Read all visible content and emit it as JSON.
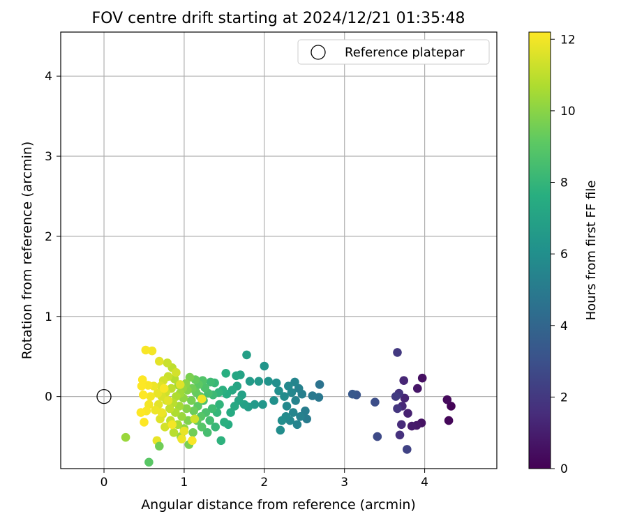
{
  "chart_data": {
    "type": "scatter",
    "title": "FOV centre drift starting at 2024/12/21 01:35:48",
    "xlabel": "Angular distance from reference (arcmin)",
    "ylabel": "Rotation from reference (arcmin)",
    "xlim": [
      -0.54,
      4.9
    ],
    "ylim": [
      -0.9,
      4.55
    ],
    "xticks": [
      "0",
      "1",
      "2",
      "3",
      "4"
    ],
    "yticks": [
      "0",
      "1",
      "2",
      "3",
      "4"
    ],
    "grid": true,
    "legend": {
      "placement": "top-right",
      "entries": [
        "Reference platepar"
      ]
    },
    "reference_point": {
      "x": 0,
      "y": 0
    },
    "colorbar": {
      "label": "Hours from first FF file",
      "range": [
        0,
        12.2
      ],
      "ticks": [
        "0",
        "2",
        "4",
        "6",
        "8",
        "10",
        "12"
      ],
      "colormap": "viridis"
    },
    "points": [
      [
        4.33,
        -0.12,
        0.1
      ],
      [
        4.3,
        -0.3,
        0.2
      ],
      [
        4.28,
        -0.04,
        0.3
      ],
      [
        3.97,
        0.23,
        0.5
      ],
      [
        3.96,
        -0.33,
        0.6
      ],
      [
        3.91,
        0.1,
        0.7
      ],
      [
        3.9,
        -0.36,
        0.8
      ],
      [
        3.84,
        -0.37,
        0.9
      ],
      [
        3.79,
        -0.21,
        1.1
      ],
      [
        3.75,
        -0.02,
        1.2
      ],
      [
        3.74,
        0.2,
        1.3
      ],
      [
        3.72,
        -0.12,
        1.4
      ],
      [
        3.71,
        -0.35,
        1.5
      ],
      [
        3.69,
        -0.48,
        1.7
      ],
      [
        3.68,
        0.04,
        1.8
      ],
      [
        3.66,
        -0.15,
        1.9
      ],
      [
        3.66,
        0.55,
        2.0
      ],
      [
        3.64,
        0.0,
        2.1
      ],
      [
        3.78,
        -0.66,
        2.4
      ],
      [
        3.41,
        -0.5,
        2.7
      ],
      [
        3.38,
        -0.07,
        2.9
      ],
      [
        3.15,
        0.02,
        3.2
      ],
      [
        3.1,
        0.03,
        3.4
      ],
      [
        2.69,
        0.15,
        4.6
      ],
      [
        2.68,
        -0.01,
        4.8
      ],
      [
        2.6,
        0.01,
        4.9
      ],
      [
        2.53,
        -0.28,
        5.0
      ],
      [
        2.51,
        -0.18,
        5.1
      ],
      [
        2.47,
        0.03,
        5.2
      ],
      [
        2.45,
        -0.25,
        5.3
      ],
      [
        2.43,
        0.1,
        5.3
      ],
      [
        2.41,
        -0.35,
        5.4
      ],
      [
        2.39,
        -0.05,
        5.4
      ],
      [
        2.38,
        0.18,
        5.5
      ],
      [
        2.36,
        -0.2,
        5.5
      ],
      [
        2.34,
        0.05,
        5.6
      ],
      [
        2.32,
        -0.3,
        5.6
      ],
      [
        2.3,
        0.13,
        5.7
      ],
      [
        2.28,
        -0.12,
        5.7
      ],
      [
        2.27,
        -0.25,
        5.8
      ],
      [
        2.25,
        0.0,
        5.8
      ],
      [
        2.22,
        -0.3,
        5.9
      ],
      [
        2.2,
        -0.42,
        5.9
      ],
      [
        2.18,
        0.07,
        6.0
      ],
      [
        2.15,
        0.17,
        6.0
      ],
      [
        2.12,
        -0.05,
        6.1
      ],
      [
        2.05,
        0.19,
        6.2
      ],
      [
        2.0,
        0.38,
        6.3
      ],
      [
        1.98,
        -0.1,
        6.4
      ],
      [
        1.93,
        0.19,
        6.5
      ],
      [
        1.88,
        -0.1,
        6.5
      ],
      [
        1.82,
        0.19,
        6.6
      ],
      [
        1.8,
        -0.13,
        6.7
      ],
      [
        1.78,
        0.52,
        6.8
      ],
      [
        1.75,
        -0.1,
        6.9
      ],
      [
        1.72,
        0.02,
        6.9
      ],
      [
        1.7,
        0.27,
        7.0
      ],
      [
        1.68,
        -0.05,
        7.1
      ],
      [
        1.66,
        0.13,
        7.1
      ],
      [
        1.65,
        0.26,
        7.2
      ],
      [
        1.63,
        -0.12,
        7.3
      ],
      [
        1.6,
        0.08,
        7.3
      ],
      [
        1.58,
        -0.2,
        7.4
      ],
      [
        1.55,
        -0.35,
        7.5
      ],
      [
        1.53,
        0.03,
        7.5
      ],
      [
        1.52,
        0.29,
        7.6
      ],
      [
        1.5,
        -0.32,
        7.7
      ],
      [
        1.48,
        0.08,
        7.7
      ],
      [
        1.46,
        -0.55,
        7.8
      ],
      [
        1.44,
        -0.1,
        7.9
      ],
      [
        1.43,
        0.05,
        7.9
      ],
      [
        1.41,
        -0.2,
        8.0
      ],
      [
        1.39,
        -0.38,
        8.1
      ],
      [
        1.38,
        0.17,
        8.1
      ],
      [
        1.36,
        0.02,
        8.2
      ],
      [
        1.35,
        -0.15,
        8.3
      ],
      [
        1.33,
        0.18,
        8.3
      ],
      [
        1.32,
        -0.3,
        8.4
      ],
      [
        1.3,
        0.04,
        8.5
      ],
      [
        1.29,
        -0.45,
        8.5
      ],
      [
        1.27,
        -0.2,
        8.6
      ],
      [
        1.26,
        0.11,
        8.7
      ],
      [
        1.24,
        -0.05,
        8.7
      ],
      [
        1.23,
        0.2,
        8.8
      ],
      [
        1.22,
        -0.38,
        8.9
      ],
      [
        1.21,
        -0.25,
        8.9
      ],
      [
        1.2,
        0.0,
        9.0
      ],
      [
        1.18,
        0.15,
        9.1
      ],
      [
        1.17,
        -0.12,
        9.1
      ],
      [
        1.16,
        -0.3,
        9.2
      ],
      [
        1.15,
        0.05,
        9.3
      ],
      [
        1.14,
        0.21,
        9.3
      ],
      [
        1.12,
        -0.18,
        9.4
      ],
      [
        1.11,
        -0.45,
        9.5
      ],
      [
        1.1,
        0.1,
        9.5
      ],
      [
        1.09,
        -0.05,
        9.6
      ],
      [
        1.07,
        0.24,
        9.7
      ],
      [
        1.06,
        -0.6,
        9.7
      ],
      [
        1.05,
        -0.3,
        9.8
      ],
      [
        1.04,
        0.08,
        9.9
      ],
      [
        1.03,
        -0.15,
        9.9
      ],
      [
        1.02,
        0.16,
        10.0
      ],
      [
        1.0,
        -0.4,
        10.1
      ],
      [
        0.99,
        -0.02,
        10.1
      ],
      [
        0.98,
        0.1,
        10.2
      ],
      [
        0.97,
        -0.25,
        10.3
      ],
      [
        0.96,
        -0.5,
        10.3
      ],
      [
        0.95,
        0.04,
        10.4
      ],
      [
        0.94,
        -0.12,
        10.5
      ],
      [
        0.93,
        0.14,
        10.5
      ],
      [
        0.92,
        -0.35,
        10.6
      ],
      [
        0.9,
        0.0,
        10.7
      ],
      [
        0.89,
        -0.2,
        10.7
      ],
      [
        0.88,
        0.22,
        10.8
      ],
      [
        0.87,
        -0.45,
        10.9
      ],
      [
        0.86,
        -0.08,
        10.9
      ],
      [
        0.85,
        0.36,
        11.0
      ],
      [
        0.84,
        0.1,
        11.0
      ],
      [
        0.83,
        -0.3,
        11.1
      ],
      [
        0.82,
        -0.15,
        11.1
      ],
      [
        0.8,
        0.25,
        11.2
      ],
      [
        0.79,
        0.42,
        11.2
      ],
      [
        0.78,
        -0.05,
        11.3
      ],
      [
        0.77,
        0.05,
        11.3
      ],
      [
        0.76,
        -0.38,
        11.4
      ],
      [
        0.74,
        0.2,
        11.4
      ],
      [
        0.73,
        -0.22,
        11.5
      ],
      [
        0.72,
        0.0,
        11.5
      ],
      [
        0.71,
        0.13,
        11.6
      ],
      [
        0.7,
        -0.28,
        11.6
      ],
      [
        0.69,
        0.44,
        11.7
      ],
      [
        0.68,
        -0.1,
        11.7
      ],
      [
        0.67,
        0.04,
        11.8
      ],
      [
        0.66,
        -0.55,
        11.8
      ],
      [
        0.64,
        -0.17,
        11.9
      ],
      [
        0.62,
        0.13,
        11.9
      ],
      [
        0.6,
        0.57,
        12.0
      ],
      [
        0.58,
        0.0,
        12.0
      ],
      [
        0.56,
        -0.1,
        12.0
      ],
      [
        0.55,
        0.14,
        12.1
      ],
      [
        0.53,
        -0.18,
        12.1
      ],
      [
        0.52,
        0.58,
        12.1
      ],
      [
        0.5,
        -0.32,
        12.2
      ],
      [
        0.49,
        0.02,
        12.2
      ],
      [
        0.48,
        0.21,
        12.2
      ],
      [
        0.47,
        0.13,
        12.2
      ],
      [
        0.46,
        -0.2,
        12.2
      ],
      [
        0.27,
        -0.51,
        10.3
      ],
      [
        0.56,
        -0.82,
        9.0
      ],
      [
        0.69,
        -0.62,
        9.5
      ],
      [
        0.97,
        -0.53,
        11.9
      ],
      [
        1.1,
        -0.55,
        12.1
      ],
      [
        1.0,
        -0.43,
        11.8
      ],
      [
        0.85,
        -0.35,
        12.0
      ],
      [
        0.75,
        0.1,
        12.1
      ],
      [
        0.95,
        0.15,
        11.6
      ],
      [
        1.13,
        -0.28,
        11.3
      ],
      [
        1.22,
        -0.03,
        11.9
      ],
      [
        0.9,
        0.3,
        11.4
      ],
      [
        0.8,
        -0.05,
        11.7
      ],
      [
        0.72,
        -0.2,
        11.9
      ]
    ]
  }
}
